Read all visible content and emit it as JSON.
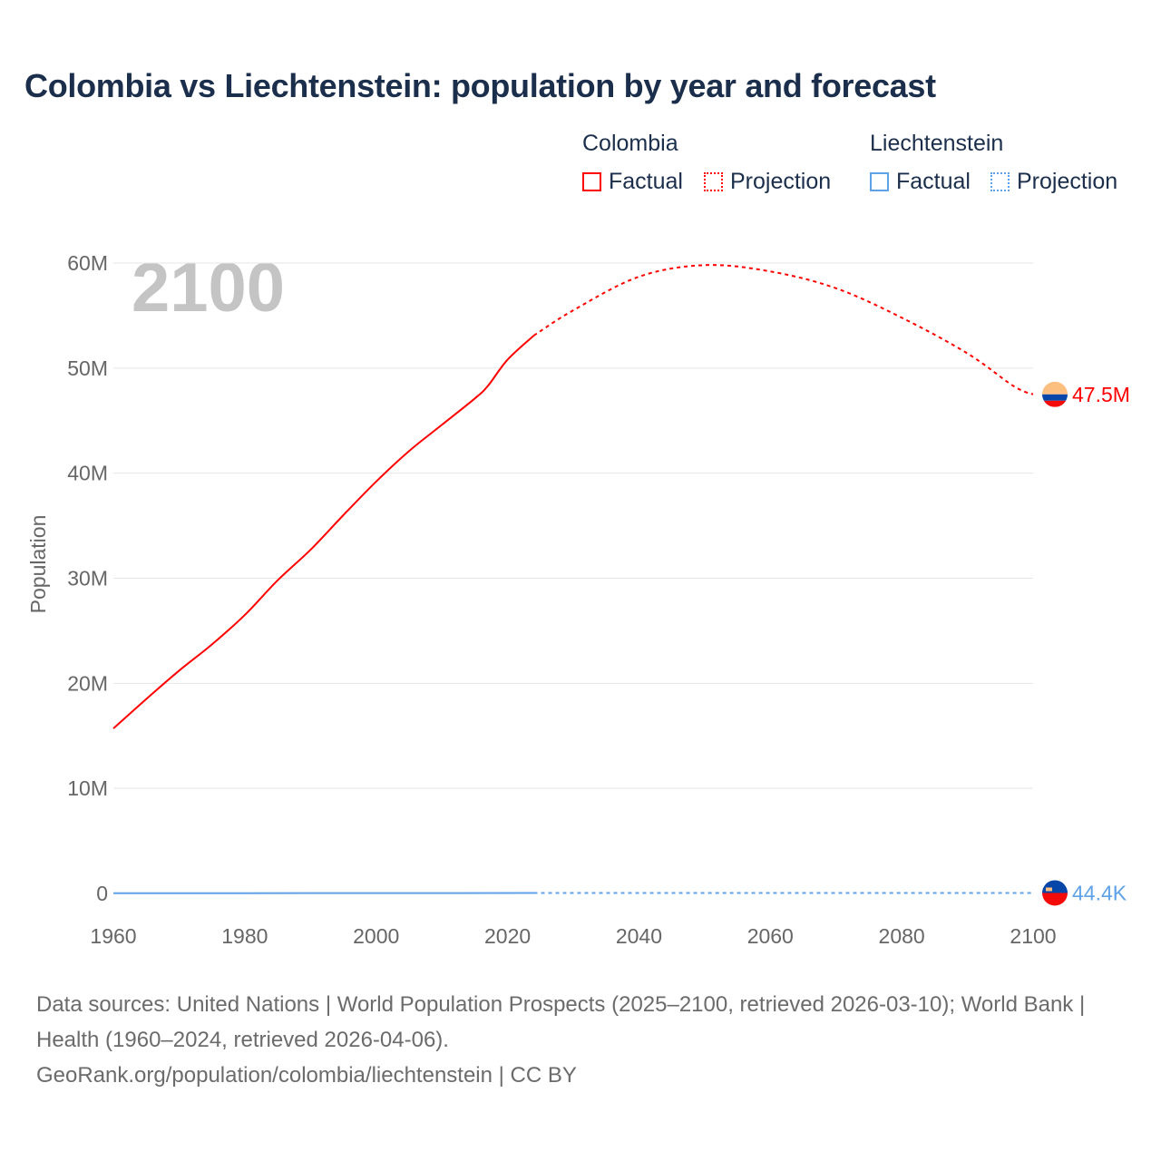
{
  "title": "Colombia vs Liechtenstein: population by year and forecast",
  "legend": {
    "groups": [
      {
        "name": "Colombia",
        "color": "#ff0000",
        "factual": "Factual",
        "projection": "Projection"
      },
      {
        "name": "Liechtenstein",
        "color": "#5fa2e8",
        "factual": "Factual",
        "projection": "Projection"
      }
    ]
  },
  "year_watermark": "2100",
  "sources": {
    "line1": "Data sources: United Nations | World Population Prospects (2025–2100, retrieved 2026-03-10); World Bank | Health (1960–2024, retrieved 2026-04-06).",
    "line2": "GeoRank.org/population/colombia/liechtenstein | CC BY"
  },
  "chart_data": {
    "type": "line",
    "title": "Colombia vs Liechtenstein: population by year and forecast",
    "xlabel": "",
    "ylabel": "Population",
    "xlim": [
      1960,
      2100
    ],
    "ylim": [
      0,
      60000000
    ],
    "x_ticks": [
      1960,
      1980,
      2000,
      2020,
      2040,
      2060,
      2080,
      2100
    ],
    "y_ticks": [
      0,
      10000000,
      20000000,
      30000000,
      40000000,
      50000000,
      60000000
    ],
    "y_tick_labels": [
      "0",
      "10M",
      "20M",
      "30M",
      "40M",
      "50M",
      "60M"
    ],
    "grid": true,
    "legend_position": "top-right",
    "series": [
      {
        "name": "Colombia",
        "kind": "Factual",
        "color": "#ff0000",
        "dashed": false,
        "x": [
          1960,
          1965,
          1970,
          1975,
          1980,
          1985,
          1990,
          1995,
          2000,
          2005,
          2010,
          2015,
          2017,
          2020,
          2024
        ],
        "y": [
          15.7,
          18.5,
          21.2,
          23.7,
          26.5,
          29.8,
          32.7,
          36.0,
          39.2,
          42.1,
          44.6,
          47.1,
          48.3,
          50.8,
          53.1
        ]
      },
      {
        "name": "Colombia",
        "kind": "Projection",
        "color": "#ff0000",
        "dashed": true,
        "x": [
          2024,
          2030,
          2040,
          2050,
          2060,
          2070,
          2080,
          2090,
          2097,
          2100
        ],
        "y": [
          53.1,
          55.5,
          58.7,
          59.8,
          59.2,
          57.6,
          54.8,
          51.4,
          48.3,
          47.5
        ]
      },
      {
        "name": "Liechtenstein",
        "kind": "Factual",
        "color": "#5fa2e8",
        "dashed": false,
        "x": [
          1960,
          1990,
          2024
        ],
        "y": [
          0.017,
          0.029,
          0.04
        ]
      },
      {
        "name": "Liechtenstein",
        "kind": "Projection",
        "color": "#5fa2e8",
        "dashed": true,
        "x": [
          2024,
          2060,
          2100
        ],
        "y": [
          0.04,
          0.043,
          0.0444
        ]
      }
    ],
    "end_labels": [
      {
        "name": "Colombia",
        "value": 47.5,
        "label": "47.5M",
        "color": "#ff0000"
      },
      {
        "name": "Liechtenstein",
        "value": 0.0444,
        "label": "44.4K",
        "color": "#5fa2e8"
      }
    ]
  }
}
